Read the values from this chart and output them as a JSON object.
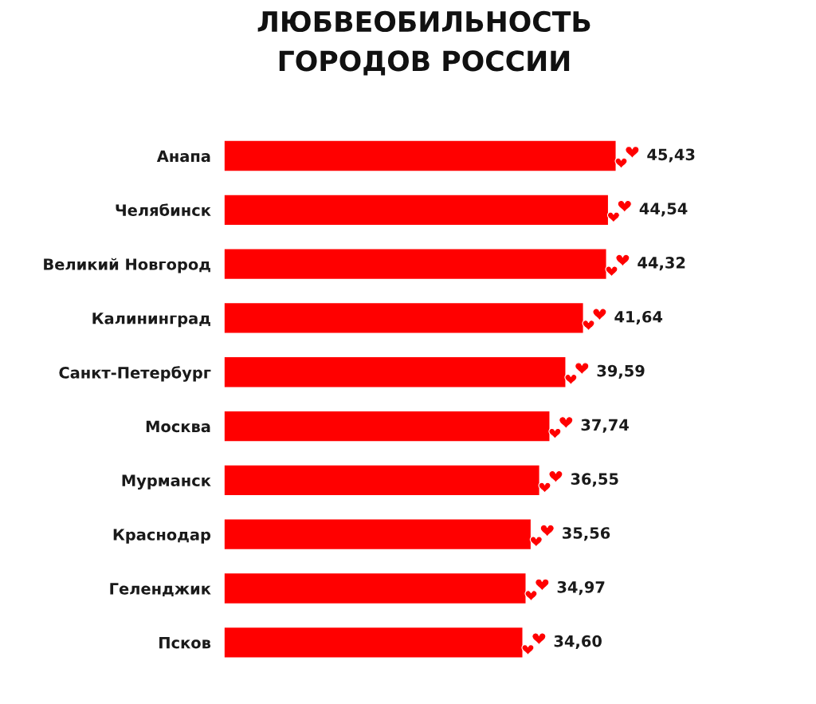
{
  "chart_data": {
    "type": "bar",
    "orientation": "horizontal",
    "title": "ЛЮБВЕОБИЛЬНОСТЬ\nГОРОДОВ РОССИИ",
    "categories": [
      "Анапа",
      "Челябинск",
      "Великий Новгород",
      "Калининград",
      "Санкт-Петербург",
      "Москва",
      "Мурманск",
      "Краснодар",
      "Геленджик",
      "Псков"
    ],
    "values": [
      45.43,
      44.54,
      44.32,
      41.64,
      39.59,
      37.74,
      36.55,
      35.56,
      34.97,
      34.6
    ],
    "value_labels": [
      "45,43",
      "44,54",
      "44,32",
      "41,64",
      "39,59",
      "37,74",
      "36,55",
      "35,56",
      "34,97",
      "34,60"
    ],
    "color": "#ff0000",
    "tick_labels": "y"
  }
}
